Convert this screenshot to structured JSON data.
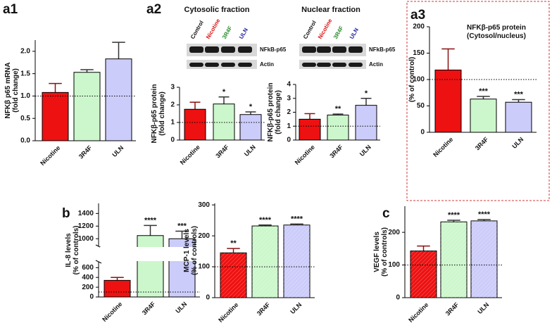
{
  "chart_data": [
    {
      "type": "bar",
      "label": "a1",
      "ylabel": [
        "NFKβ  p65 mRNA",
        "(fold change)"
      ],
      "categories": [
        "Nicotine",
        "3R4F",
        "ULN"
      ],
      "values": [
        1.08,
        1.53,
        1.83
      ],
      "errors": [
        0.2,
        0.06,
        0.37
      ],
      "colors": [
        "#ee1111",
        "#ccf7cc",
        "#ccccfa"
      ],
      "ylim": [
        0,
        2.25
      ],
      "yticks": [
        {
          "value": 0,
          "label": "0.0"
        },
        {
          "value": 0.5,
          "label": "0.5"
        },
        {
          "value": 1,
          "label": "1.0"
        },
        {
          "value": 1.5,
          "label": "1.5"
        },
        {
          "value": 2,
          "label": "2.0"
        }
      ],
      "reference_line": 1
    },
    {
      "type": "bar",
      "label": "a2",
      "blot": {
        "title": "Cytosolic fraction",
        "lanes": [
          "Control",
          "Nicotine",
          "3R4F",
          "ULN"
        ],
        "lane_colors": [
          "#111111",
          "#dd1111",
          "#2a8a2a",
          "#22229a"
        ],
        "bands": [
          "NFkB-p65",
          "Actin"
        ]
      },
      "ylabel": [
        "NFKβ-p65 protein",
        "(fold change)"
      ],
      "categories": [
        "Nicotine",
        "3R4F",
        "ULN"
      ],
      "values": [
        1.75,
        2.05,
        1.45
      ],
      "errors": [
        0.4,
        0.4,
        0.15
      ],
      "colors": [
        "#ee1111",
        "#ccf7cc",
        "#ccccfa"
      ],
      "ylim": [
        0,
        3
      ],
      "yticks": [
        0,
        1,
        2,
        3
      ],
      "annotations": [
        null,
        "*",
        "*"
      ],
      "reference_line": 1
    },
    {
      "type": "bar",
      "blot": {
        "title": "Nuclear fraction",
        "lanes": [
          "Control",
          "Nicotine",
          "3R4F",
          "ULN"
        ],
        "lane_colors": [
          "#111111",
          "#dd1111",
          "#2a8a2a",
          "#22229a"
        ],
        "bands": [
          "NFkB-p65",
          "Actin"
        ]
      },
      "ylabel": [
        "NFKβ-p65 protein",
        "(fold change)"
      ],
      "categories": [
        "Nicotine",
        "3R4F",
        "ULN"
      ],
      "values": [
        1.5,
        1.8,
        2.5
      ],
      "errors": [
        0.4,
        0.07,
        0.5
      ],
      "colors": [
        "#ee1111",
        "#ccf7cc",
        "#ccccfa"
      ],
      "ylim": [
        0,
        4
      ],
      "yticks": [
        0,
        1,
        2,
        3,
        4
      ],
      "annotations": [
        null,
        "**",
        "*"
      ],
      "reference_line": 1
    },
    {
      "type": "bar",
      "label": "a3",
      "title": [
        "NFKβ-p65   protein",
        "(Cytosol/nucleus)"
      ],
      "ylabel": [
        "(% of control)"
      ],
      "categories": [
        "Nicotine",
        "3R4F",
        "ULN"
      ],
      "values": [
        118,
        63,
        57
      ],
      "errors": [
        40,
        5,
        5
      ],
      "colors": [
        "#ee1111",
        "#ccf7cc",
        "#ccccfa"
      ],
      "ylim": [
        0,
        200
      ],
      "yticks": [
        0,
        50,
        100,
        150,
        200
      ],
      "annotations": [
        null,
        "***",
        "***"
      ],
      "reference_line": 100
    },
    {
      "type": "bar",
      "label": "b",
      "ylabel": [
        "IL-8 levels",
        "(% of controls)"
      ],
      "categories": [
        "Nicotine",
        "3R4F",
        "ULN"
      ],
      "values": [
        340,
        1050,
        1000
      ],
      "errors": [
        60,
        160,
        120
      ],
      "colors": [
        "#ee1111",
        "#ccf7cc",
        "#ccccfa"
      ],
      "ylim": [
        0,
        1560
      ],
      "axis_break": [
        720,
        880
      ],
      "yticks": [
        0,
        200,
        400,
        600,
        1000,
        1200,
        1400
      ],
      "annotations": [
        null,
        "****",
        "***"
      ],
      "reference_line": 100
    },
    {
      "type": "bar",
      "ylabel": [
        "MCP-1 levels",
        "(% of controls)"
      ],
      "categories": [
        "Nicotine",
        "3R4F",
        "ULN"
      ],
      "values": [
        145,
        232,
        235
      ],
      "errors": [
        14,
        3,
        3
      ],
      "colors": [
        "#ee1111",
        "#ccf7cc",
        "#ccccfa"
      ],
      "hatch": true,
      "ylim": [
        0,
        305
      ],
      "yticks": [
        0,
        100,
        200,
        300
      ],
      "annotations": [
        "**",
        "****",
        "****"
      ],
      "reference_line": 100
    },
    {
      "type": "bar",
      "label": "c",
      "ylabel": [
        "VEGF levels",
        "(% of controls)"
      ],
      "categories": [
        "Nicotine",
        "3R4F",
        "ULN"
      ],
      "values": [
        143,
        232,
        235
      ],
      "errors": [
        15,
        5,
        4
      ],
      "colors": [
        "#ee1111",
        "#ccf7cc",
        "#ccccfa"
      ],
      "hatch": true,
      "ylim": [
        0,
        280
      ],
      "yticks": [
        0,
        100,
        200
      ],
      "annotations": [
        null,
        "****",
        "****"
      ],
      "reference_line": 100
    }
  ]
}
